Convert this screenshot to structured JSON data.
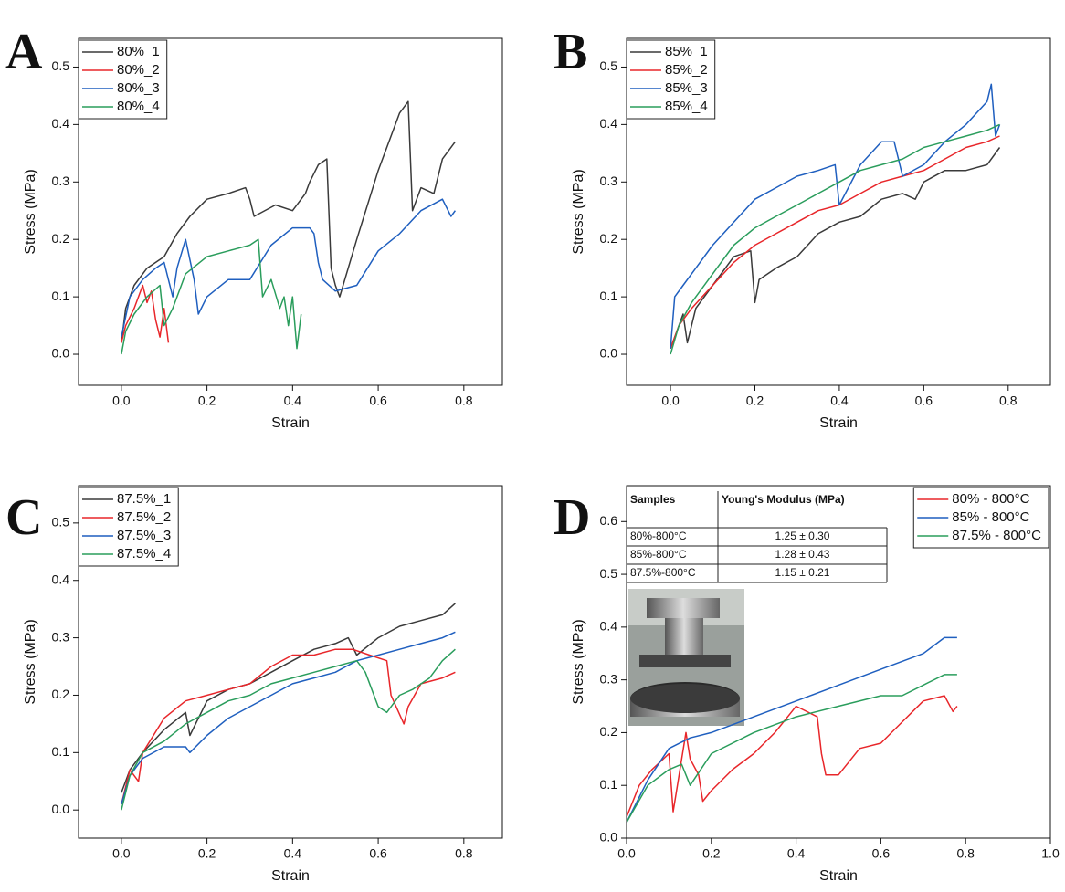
{
  "chart_data": [
    {
      "type": "line",
      "label": "A",
      "xlabel": "Strain",
      "ylabel": "Stress (MPa)",
      "legend": "upper left",
      "xlim": [
        -0.1,
        0.89
      ],
      "ylim": [
        -0.054,
        0.55
      ],
      "xticks": [
        {
          "value": 0,
          "label": "0.0"
        },
        0.2,
        0.4,
        0.6,
        0.8
      ],
      "yticks": [
        {
          "value": 0,
          "label": "0.0"
        },
        0.1,
        0.2,
        0.3,
        0.4,
        0.5
      ],
      "series": [
        {
          "name": "80%_1",
          "color": "#3a3a3a",
          "x": [
            0,
            0.01,
            0.03,
            0.06,
            0.1,
            0.13,
            0.16,
            0.2,
            0.25,
            0.29,
            0.3,
            0.31,
            0.36,
            0.4,
            0.43,
            0.44,
            0.46,
            0.48,
            0.49,
            0.5,
            0.51,
            0.55,
            0.6,
            0.65,
            0.67,
            0.68,
            0.7,
            0.73,
            0.75,
            0.78
          ],
          "values": [
            0.02,
            0.08,
            0.12,
            0.15,
            0.17,
            0.21,
            0.24,
            0.27,
            0.28,
            0.29,
            0.27,
            0.24,
            0.26,
            0.25,
            0.28,
            0.3,
            0.33,
            0.34,
            0.15,
            0.12,
            0.1,
            0.2,
            0.32,
            0.42,
            0.44,
            0.25,
            0.29,
            0.28,
            0.34,
            0.37
          ]
        },
        {
          "name": "80%_2",
          "color": "#e8262a",
          "x": [
            0,
            0.01,
            0.03,
            0.05,
            0.06,
            0.07,
            0.08,
            0.09,
            0.1,
            0.11
          ],
          "values": [
            0.02,
            0.05,
            0.08,
            0.12,
            0.09,
            0.11,
            0.06,
            0.03,
            0.08,
            0.02
          ]
        },
        {
          "name": "80%_3",
          "color": "#1f5fbf",
          "x": [
            0,
            0.02,
            0.05,
            0.08,
            0.1,
            0.12,
            0.13,
            0.15,
            0.17,
            0.18,
            0.2,
            0.25,
            0.3,
            0.35,
            0.4,
            0.44,
            0.45,
            0.46,
            0.47,
            0.5,
            0.55,
            0.6,
            0.65,
            0.7,
            0.75,
            0.77,
            0.78
          ],
          "values": [
            0.03,
            0.1,
            0.13,
            0.15,
            0.16,
            0.1,
            0.15,
            0.2,
            0.13,
            0.07,
            0.1,
            0.13,
            0.13,
            0.19,
            0.22,
            0.22,
            0.21,
            0.16,
            0.13,
            0.11,
            0.12,
            0.18,
            0.21,
            0.25,
            0.27,
            0.24,
            0.25
          ]
        },
        {
          "name": "80%_4",
          "color": "#2a9d5c",
          "x": [
            0,
            0.01,
            0.03,
            0.06,
            0.09,
            0.1,
            0.12,
            0.15,
            0.2,
            0.25,
            0.3,
            0.32,
            0.33,
            0.35,
            0.37,
            0.38,
            0.39,
            0.4,
            0.41,
            0.42
          ],
          "values": [
            0,
            0.04,
            0.07,
            0.1,
            0.12,
            0.05,
            0.08,
            0.14,
            0.17,
            0.18,
            0.19,
            0.2,
            0.1,
            0.13,
            0.08,
            0.1,
            0.05,
            0.1,
            0.01,
            0.07
          ]
        }
      ]
    },
    {
      "type": "line",
      "label": "B",
      "xlabel": "Strain",
      "ylabel": "Stress (MPa)",
      "legend": "upper left",
      "xlim": [
        -0.104,
        0.9
      ],
      "ylim": [
        -0.054,
        0.55
      ],
      "xticks": [
        {
          "value": 0,
          "label": "0.0"
        },
        0.2,
        0.4,
        0.6,
        0.8
      ],
      "yticks": [
        {
          "value": 0,
          "label": "0.0"
        },
        0.1,
        0.2,
        0.3,
        0.4,
        0.5
      ],
      "series": [
        {
          "name": "85%_1",
          "color": "#3a3a3a",
          "x": [
            0,
            0.02,
            0.03,
            0.04,
            0.06,
            0.1,
            0.15,
            0.19,
            0.2,
            0.21,
            0.25,
            0.3,
            0.35,
            0.4,
            0.45,
            0.5,
            0.55,
            0.58,
            0.6,
            0.65,
            0.7,
            0.75,
            0.78
          ],
          "values": [
            0.01,
            0.05,
            0.07,
            0.02,
            0.08,
            0.12,
            0.17,
            0.18,
            0.09,
            0.13,
            0.15,
            0.17,
            0.21,
            0.23,
            0.24,
            0.27,
            0.28,
            0.27,
            0.3,
            0.32,
            0.32,
            0.33,
            0.36
          ]
        },
        {
          "name": "85%_2",
          "color": "#e8262a",
          "x": [
            0,
            0.02,
            0.05,
            0.1,
            0.15,
            0.2,
            0.25,
            0.3,
            0.35,
            0.4,
            0.45,
            0.5,
            0.55,
            0.6,
            0.65,
            0.7,
            0.75,
            0.78
          ],
          "values": [
            0.01,
            0.05,
            0.08,
            0.12,
            0.16,
            0.19,
            0.21,
            0.23,
            0.25,
            0.26,
            0.28,
            0.3,
            0.31,
            0.32,
            0.34,
            0.36,
            0.37,
            0.38
          ]
        },
        {
          "name": "85%_3",
          "color": "#1f5fbf",
          "x": [
            0,
            0.01,
            0.03,
            0.06,
            0.1,
            0.15,
            0.2,
            0.25,
            0.3,
            0.35,
            0.39,
            0.4,
            0.45,
            0.5,
            0.53,
            0.55,
            0.6,
            0.65,
            0.7,
            0.75,
            0.76,
            0.77,
            0.78
          ],
          "values": [
            0.01,
            0.1,
            0.12,
            0.15,
            0.19,
            0.23,
            0.27,
            0.29,
            0.31,
            0.32,
            0.33,
            0.26,
            0.33,
            0.37,
            0.37,
            0.31,
            0.33,
            0.37,
            0.4,
            0.44,
            0.47,
            0.38,
            0.4
          ]
        },
        {
          "name": "85%_4",
          "color": "#2a9d5c",
          "x": [
            0,
            0.02,
            0.05,
            0.1,
            0.15,
            0.2,
            0.25,
            0.3,
            0.35,
            0.4,
            0.45,
            0.5,
            0.55,
            0.6,
            0.65,
            0.7,
            0.75,
            0.78
          ],
          "values": [
            0,
            0.05,
            0.09,
            0.14,
            0.19,
            0.22,
            0.24,
            0.26,
            0.28,
            0.3,
            0.32,
            0.33,
            0.34,
            0.36,
            0.37,
            0.38,
            0.39,
            0.4
          ]
        }
      ]
    },
    {
      "type": "line",
      "label": "C",
      "xlabel": "Strain",
      "ylabel": "Stress (MPa)",
      "legend": "upper left",
      "xlim": [
        -0.1,
        0.89
      ],
      "ylim": [
        -0.049,
        0.565
      ],
      "xticks": [
        {
          "value": 0,
          "label": "0.0"
        },
        0.2,
        0.4,
        0.6,
        0.8
      ],
      "yticks": [
        {
          "value": 0,
          "label": "0.0"
        },
        0.1,
        0.2,
        0.3,
        0.4,
        0.5
      ],
      "series": [
        {
          "name": "87.5%_1",
          "color": "#3a3a3a",
          "x": [
            0,
            0.02,
            0.05,
            0.1,
            0.15,
            0.16,
            0.2,
            0.25,
            0.3,
            0.35,
            0.4,
            0.45,
            0.5,
            0.53,
            0.55,
            0.6,
            0.65,
            0.7,
            0.75,
            0.78
          ],
          "values": [
            0.03,
            0.07,
            0.1,
            0.14,
            0.17,
            0.13,
            0.19,
            0.21,
            0.22,
            0.24,
            0.26,
            0.28,
            0.29,
            0.3,
            0.27,
            0.3,
            0.32,
            0.33,
            0.34,
            0.36
          ]
        },
        {
          "name": "87.5%_2",
          "color": "#e8262a",
          "x": [
            0,
            0.02,
            0.04,
            0.05,
            0.1,
            0.15,
            0.2,
            0.25,
            0.3,
            0.35,
            0.4,
            0.45,
            0.5,
            0.54,
            0.58,
            0.62,
            0.63,
            0.66,
            0.67,
            0.7,
            0.75,
            0.78
          ],
          "values": [
            0.01,
            0.07,
            0.05,
            0.1,
            0.16,
            0.19,
            0.2,
            0.21,
            0.22,
            0.25,
            0.27,
            0.27,
            0.28,
            0.28,
            0.27,
            0.26,
            0.2,
            0.15,
            0.18,
            0.22,
            0.23,
            0.24
          ]
        },
        {
          "name": "87.5%_3",
          "color": "#1f5fbf",
          "x": [
            0,
            0.02,
            0.05,
            0.1,
            0.15,
            0.16,
            0.2,
            0.25,
            0.3,
            0.35,
            0.4,
            0.45,
            0.5,
            0.55,
            0.6,
            0.65,
            0.7,
            0.75,
            0.78
          ],
          "values": [
            0.01,
            0.06,
            0.09,
            0.11,
            0.11,
            0.1,
            0.13,
            0.16,
            0.18,
            0.2,
            0.22,
            0.23,
            0.24,
            0.26,
            0.27,
            0.28,
            0.29,
            0.3,
            0.31
          ]
        },
        {
          "name": "87.5%_4",
          "color": "#2a9d5c",
          "x": [
            0,
            0.02,
            0.05,
            0.1,
            0.15,
            0.2,
            0.25,
            0.3,
            0.35,
            0.4,
            0.45,
            0.5,
            0.55,
            0.57,
            0.6,
            0.62,
            0.65,
            0.68,
            0.72,
            0.75,
            0.78
          ],
          "values": [
            0,
            0.06,
            0.1,
            0.12,
            0.15,
            0.17,
            0.19,
            0.2,
            0.22,
            0.23,
            0.24,
            0.25,
            0.26,
            0.24,
            0.18,
            0.17,
            0.2,
            0.21,
            0.23,
            0.26,
            0.28
          ]
        }
      ]
    },
    {
      "type": "line",
      "label": "D",
      "xlabel": "Strain",
      "ylabel": "Stress (MPa)",
      "legend": "upper right",
      "xlim": [
        0,
        1
      ],
      "ylim": [
        0,
        0.668
      ],
      "xticks": [
        {
          "value": 0,
          "label": "0.0"
        },
        0.2,
        0.4,
        0.6,
        0.8,
        {
          "value": 1,
          "label": "1.0"
        }
      ],
      "yticks": [
        {
          "value": 0,
          "label": "0.0"
        },
        0.1,
        0.2,
        0.3,
        0.4,
        0.5,
        0.6
      ],
      "table": {
        "columns": [
          "Samples",
          "Young's Modulus (MPa)"
        ],
        "rows": [
          [
            "80%-800°C",
            "1.25 ± 0.30"
          ],
          [
            "85%-800°C",
            "1.28 ± 0.43"
          ],
          [
            "87.5%-800°C",
            "1.15 ± 0.21"
          ]
        ]
      },
      "series": [
        {
          "name": "80% - 800°C",
          "color": "#e8262a",
          "x": [
            0,
            0.03,
            0.06,
            0.1,
            0.11,
            0.14,
            0.15,
            0.17,
            0.18,
            0.2,
            0.25,
            0.3,
            0.35,
            0.39,
            0.4,
            0.45,
            0.46,
            0.47,
            0.5,
            0.55,
            0.6,
            0.65,
            0.7,
            0.75,
            0.77,
            0.78
          ],
          "values": [
            0.04,
            0.1,
            0.13,
            0.16,
            0.05,
            0.2,
            0.15,
            0.12,
            0.07,
            0.09,
            0.13,
            0.16,
            0.2,
            0.24,
            0.25,
            0.23,
            0.16,
            0.12,
            0.12,
            0.17,
            0.18,
            0.22,
            0.26,
            0.27,
            0.24,
            0.25
          ]
        },
        {
          "name": "85% - 800°C",
          "color": "#1f5fbf",
          "x": [
            0,
            0.05,
            0.1,
            0.15,
            0.2,
            0.3,
            0.4,
            0.5,
            0.6,
            0.7,
            0.75,
            0.78
          ],
          "values": [
            0.03,
            0.11,
            0.17,
            0.19,
            0.2,
            0.23,
            0.26,
            0.29,
            0.32,
            0.35,
            0.38,
            0.38
          ]
        },
        {
          "name": "87.5% - 800°C",
          "color": "#2a9d5c",
          "x": [
            0,
            0.05,
            0.1,
            0.13,
            0.15,
            0.2,
            0.3,
            0.4,
            0.5,
            0.6,
            0.65,
            0.7,
            0.75,
            0.78
          ],
          "values": [
            0.03,
            0.1,
            0.13,
            0.14,
            0.1,
            0.16,
            0.2,
            0.23,
            0.25,
            0.27,
            0.27,
            0.29,
            0.31,
            0.31
          ]
        }
      ]
    }
  ]
}
